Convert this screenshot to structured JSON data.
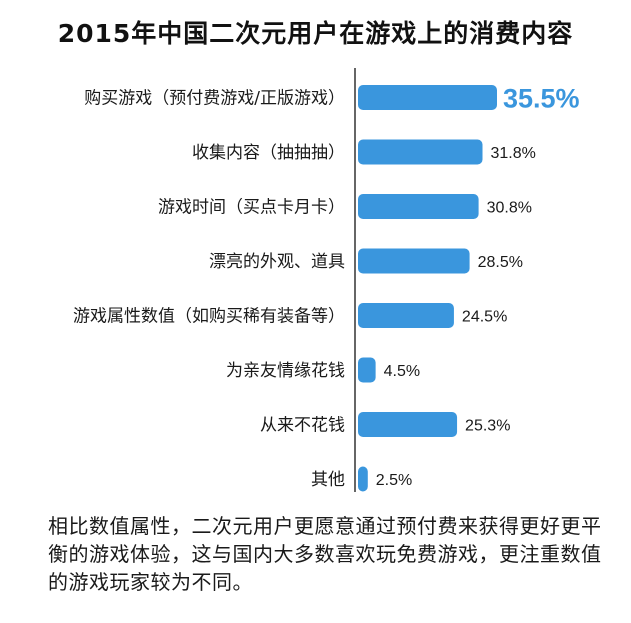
{
  "chart_data": {
    "type": "bar",
    "title": "2015年中国二次元用户在游戏上的消费内容",
    "categories": [
      "购买游戏（预付费游戏/正版游戏）",
      "收集内容（抽抽抽）",
      "游戏时间（买点卡月卡）",
      "漂亮的外观、道具",
      "游戏属性数值（如购买稀有装备等）",
      "为亲友情缘花钱",
      "从来不花钱",
      "其他"
    ],
    "values": [
      35.5,
      31.8,
      30.8,
      28.5,
      24.5,
      4.5,
      25.3,
      2.5
    ],
    "value_labels": [
      "35.5%",
      "31.8%",
      "30.8%",
      "28.5%",
      "24.5%",
      "4.5%",
      "25.3%",
      "2.5%"
    ],
    "highlight_index": 0,
    "xlim": [
      0,
      40
    ],
    "bar_color": "#3a96dd",
    "highlight_label_color": "#3a96dd",
    "axis_color": "#333333"
  },
  "footnote": "相比数值属性，二次元用户更愿意通过预付费来获得更好更平衡的游戏体验，这与国内大多数喜欢玩免费游戏，更注重数值的游戏玩家较为不同。"
}
